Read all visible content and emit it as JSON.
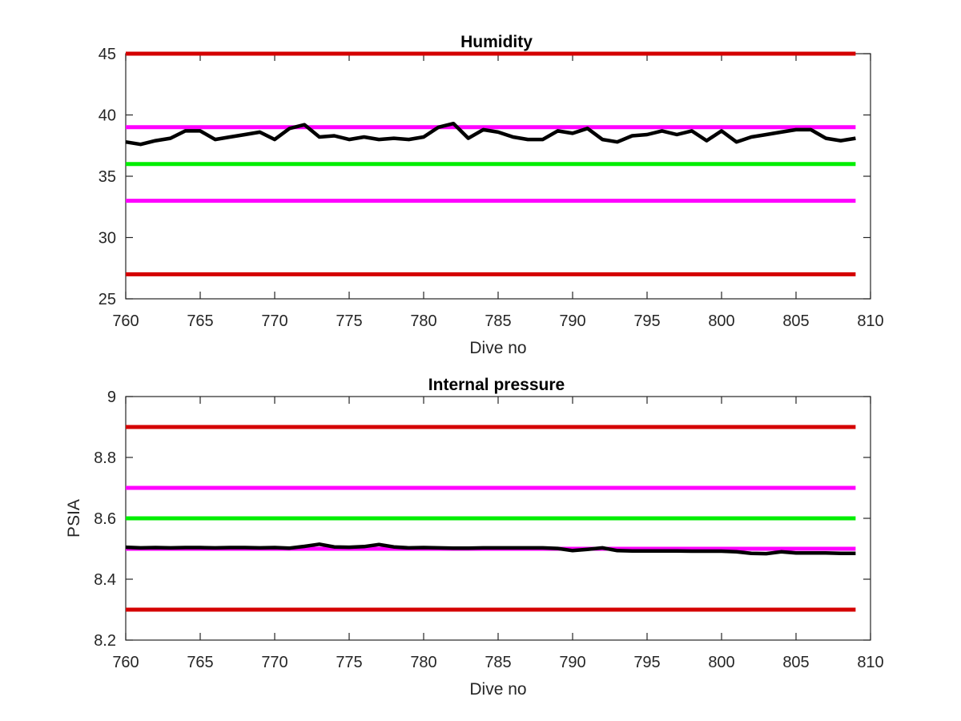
{
  "chart_data": [
    {
      "type": "line",
      "title": "Humidity",
      "xlabel": "Dive no",
      "ylabel": "",
      "xlim": [
        760,
        810
      ],
      "ylim": [
        25,
        45
      ],
      "xticks": [
        760,
        765,
        770,
        775,
        780,
        785,
        790,
        795,
        800,
        805,
        810
      ],
      "yticks": [
        25,
        30,
        35,
        40,
        45
      ],
      "grid": false,
      "legend": "none",
      "reference_lines": [
        {
          "y": 45,
          "color": "#d40000"
        },
        {
          "y": 39,
          "color": "#ff00ff"
        },
        {
          "y": 36,
          "color": "#00ee00"
        },
        {
          "y": 33,
          "color": "#ff00ff"
        },
        {
          "y": 27,
          "color": "#d40000"
        }
      ],
      "series": [
        {
          "color": "#000000",
          "x": [
            760,
            761,
            762,
            763,
            764,
            765,
            766,
            767,
            768,
            769,
            770,
            771,
            772,
            773,
            774,
            775,
            776,
            777,
            778,
            779,
            780,
            781,
            782,
            783,
            784,
            785,
            786,
            787,
            788,
            789,
            790,
            791,
            792,
            793,
            794,
            795,
            796,
            797,
            798,
            799,
            800,
            801,
            802,
            803,
            804,
            805,
            806,
            807,
            808,
            809
          ],
          "y": [
            37.8,
            37.6,
            37.9,
            38.1,
            38.7,
            38.7,
            38.0,
            38.2,
            38.4,
            38.6,
            38.0,
            38.9,
            39.2,
            38.2,
            38.3,
            38.0,
            38.2,
            38.0,
            38.1,
            38.0,
            38.2,
            39.0,
            39.3,
            38.1,
            38.8,
            38.6,
            38.2,
            38.0,
            38.0,
            38.7,
            38.5,
            38.9,
            38.0,
            37.8,
            38.3,
            38.4,
            38.7,
            38.4,
            38.7,
            37.9,
            38.7,
            37.8,
            38.2,
            38.4,
            38.6,
            38.8,
            38.8,
            38.1,
            37.9,
            38.1
          ]
        }
      ]
    },
    {
      "type": "line",
      "title": "Internal pressure",
      "xlabel": "Dive no",
      "ylabel": "PSIA",
      "xlim": [
        760,
        810
      ],
      "ylim": [
        8.2,
        9
      ],
      "xticks": [
        760,
        765,
        770,
        775,
        780,
        785,
        790,
        795,
        800,
        805,
        810
      ],
      "yticks": [
        8.2,
        8.4,
        8.6,
        8.8,
        9
      ],
      "ytick_labels": [
        "8.2",
        "8.4",
        "8.6",
        "8.8",
        "9"
      ],
      "grid": false,
      "legend": "none",
      "reference_lines": [
        {
          "y": 8.9,
          "color": "#d40000"
        },
        {
          "y": 8.7,
          "color": "#ff00ff"
        },
        {
          "y": 8.6,
          "color": "#00ee00"
        },
        {
          "y": 8.5,
          "color": "#ff00ff"
        },
        {
          "y": 8.3,
          "color": "#d40000"
        }
      ],
      "series": [
        {
          "color": "#000000",
          "x": [
            760,
            761,
            762,
            763,
            764,
            765,
            766,
            767,
            768,
            769,
            770,
            771,
            772,
            773,
            774,
            775,
            776,
            777,
            778,
            779,
            780,
            781,
            782,
            783,
            784,
            785,
            786,
            787,
            788,
            789,
            790,
            791,
            792,
            793,
            794,
            795,
            796,
            797,
            798,
            799,
            800,
            801,
            802,
            803,
            804,
            805,
            806,
            807,
            808,
            809
          ],
          "y": [
            8.505,
            8.503,
            8.504,
            8.503,
            8.504,
            8.504,
            8.503,
            8.504,
            8.504,
            8.503,
            8.504,
            8.502,
            8.508,
            8.515,
            8.506,
            8.505,
            8.507,
            8.514,
            8.506,
            8.503,
            8.504,
            8.503,
            8.502,
            8.502,
            8.503,
            8.503,
            8.503,
            8.503,
            8.503,
            8.501,
            8.494,
            8.498,
            8.503,
            8.494,
            8.493,
            8.493,
            8.493,
            8.493,
            8.492,
            8.492,
            8.492,
            8.49,
            8.485,
            8.484,
            8.49,
            8.486,
            8.486,
            8.486,
            8.485,
            8.485
          ]
        }
      ]
    }
  ]
}
